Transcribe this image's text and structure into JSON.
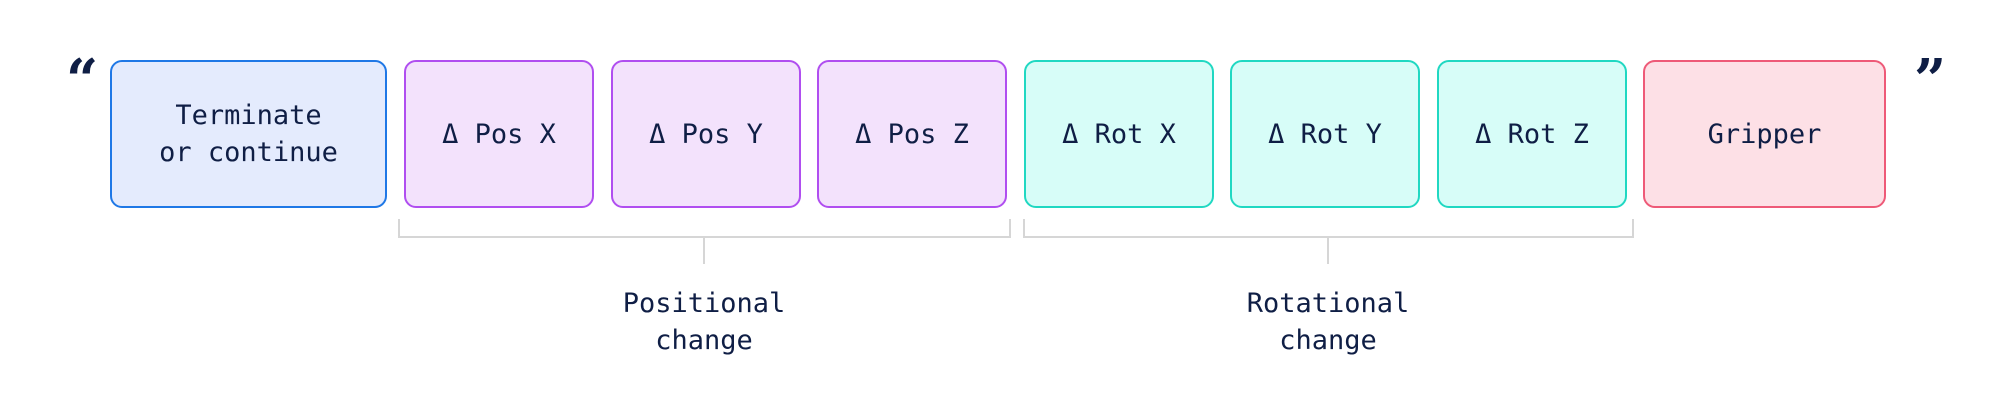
{
  "open_quote": "“",
  "close_quote": "”",
  "tokens": [
    {
      "label": "Terminate\nor continue",
      "group": "terminate"
    },
    {
      "label": "Δ Pos X",
      "group": "positional"
    },
    {
      "label": "Δ Pos Y",
      "group": "positional"
    },
    {
      "label": "Δ Pos Z",
      "group": "positional"
    },
    {
      "label": "Δ Rot X",
      "group": "rotational"
    },
    {
      "label": "Δ Rot Y",
      "group": "rotational"
    },
    {
      "label": "Δ Rot Z",
      "group": "rotational"
    },
    {
      "label": "Gripper",
      "group": "gripper"
    }
  ],
  "groups": {
    "positional": {
      "label": "Positional\nchange"
    },
    "rotational": {
      "label": "Rotational\nchange"
    }
  },
  "colors": {
    "terminate": {
      "border": "#1f78e6",
      "fill": "#e4ebfd"
    },
    "positional": {
      "border": "#b04ef0",
      "fill": "#f3e2fc"
    },
    "rotational": {
      "border": "#20d8c2",
      "fill": "#d7fdf8"
    },
    "gripper": {
      "border": "#ee5a78",
      "fill": "#fde0e6"
    },
    "text": "#0f1e45",
    "bracket": "#d6d6d6"
  }
}
